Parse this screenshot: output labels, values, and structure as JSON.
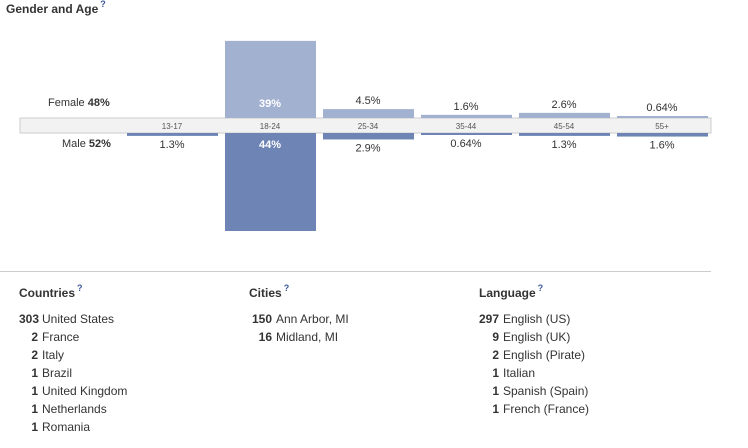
{
  "gender_age": {
    "title": "Gender and Age",
    "help": "?",
    "female_label": "Female",
    "female_pct": "48%",
    "male_label": "Male",
    "male_pct": "52%"
  },
  "chart_data": {
    "type": "bar",
    "categories": [
      "13-17",
      "18-24",
      "25-34",
      "35-44",
      "45-54",
      "55+"
    ],
    "series": [
      {
        "name": "Female",
        "values": [
          0,
          39,
          4.5,
          1.6,
          2.6,
          0.64
        ],
        "labels": [
          "",
          "39%",
          "4.5%",
          "1.6%",
          "2.6%",
          "0.64%"
        ]
      },
      {
        "name": "Male",
        "values": [
          1.3,
          44,
          2.9,
          0.64,
          1.3,
          1.6
        ],
        "labels": [
          "1.3%",
          "44%",
          "2.9%",
          "0.64%",
          "1.3%",
          "1.6%"
        ]
      }
    ],
    "colors": {
      "female": "#a3b1d1",
      "male": "#6d84b4",
      "band": "#f2f2f2",
      "band_border": "#cccccc"
    },
    "ylim": [
      0,
      44
    ]
  },
  "countries": {
    "title": "Countries",
    "help": "?",
    "items": [
      {
        "count": "303",
        "name": "United States"
      },
      {
        "count": "2",
        "name": "France"
      },
      {
        "count": "2",
        "name": "Italy"
      },
      {
        "count": "1",
        "name": "Brazil"
      },
      {
        "count": "1",
        "name": "United Kingdom"
      },
      {
        "count": "1",
        "name": "Netherlands"
      },
      {
        "count": "1",
        "name": "Romania"
      }
    ]
  },
  "cities": {
    "title": "Cities",
    "help": "?",
    "items": [
      {
        "count": "150",
        "name": "Ann Arbor, MI"
      },
      {
        "count": "16",
        "name": "Midland, MI"
      }
    ]
  },
  "languages": {
    "title": "Language",
    "help": "?",
    "items": [
      {
        "count": "297",
        "name": "English (US)"
      },
      {
        "count": "9",
        "name": "English (UK)"
      },
      {
        "count": "2",
        "name": "English (Pirate)"
      },
      {
        "count": "1",
        "name": "Italian"
      },
      {
        "count": "1",
        "name": "Spanish (Spain)"
      },
      {
        "count": "1",
        "name": "French (France)"
      }
    ]
  }
}
